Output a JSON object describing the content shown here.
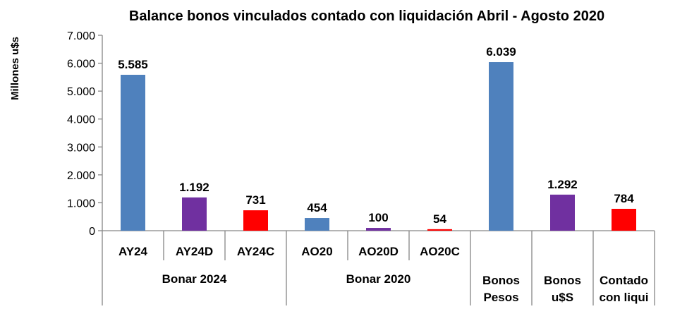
{
  "chart_data": {
    "type": "bar",
    "title": "Balance bonos vinculados contado con liquidación Abril - Agosto 2020",
    "ylabel": "Millones u$s",
    "xlabel": "",
    "ylim": [
      0,
      7000
    ],
    "yticks": [
      "0",
      "1.000",
      "2.000",
      "3.000",
      "4.000",
      "5.000",
      "6.000",
      "7.000"
    ],
    "grid": false,
    "categories": [
      "AY24",
      "AY24D",
      "AY24C",
      "AO20",
      "AO20D",
      "AO20C",
      "",
      "",
      ""
    ],
    "groups": [
      {
        "label": "Bonar 2024",
        "span": 3
      },
      {
        "label": "Bonar 2020",
        "span": 3
      },
      {
        "label": "Bonos Pesos",
        "lines": [
          "Bonos",
          "Pesos"
        ],
        "span": 1
      },
      {
        "label": "Bonos u$S",
        "lines": [
          "Bonos",
          "u$S"
        ],
        "span": 1
      },
      {
        "label": "Contado con liqui",
        "lines": [
          "Contado",
          "con liqui"
        ],
        "span": 1
      }
    ],
    "values": [
      5585,
      1192,
      731,
      454,
      100,
      54,
      6039,
      1292,
      784
    ],
    "value_labels": [
      "5.585",
      "1.192",
      "731",
      "454",
      "100",
      "54",
      "6.039",
      "1.292",
      "784"
    ],
    "colors": [
      "#4F81BD",
      "#7030A0",
      "#FF0000",
      "#4F81BD",
      "#7030A0",
      "#FF0000",
      "#4F81BD",
      "#7030A0",
      "#FF0000"
    ]
  }
}
